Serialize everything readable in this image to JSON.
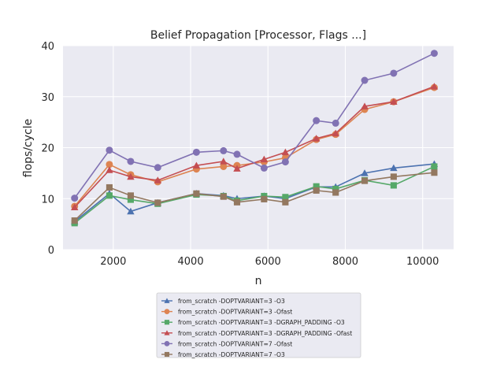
{
  "chart_data": {
    "type": "line",
    "title": "Belief Propagation [Processor, Flags ...]",
    "xlabel": "n",
    "ylabel": "flops/cycle",
    "xlim": [
      700,
      10800
    ],
    "ylim": [
      0,
      40
    ],
    "xticks": [
      2000,
      4000,
      6000,
      8000,
      10000
    ],
    "xtick_labels": [
      "2000",
      "4000",
      "6000",
      "8000",
      "10000"
    ],
    "yticks": [
      0,
      10,
      20,
      30,
      40
    ],
    "ytick_labels": [
      "0",
      "10",
      "20",
      "30",
      "40"
    ],
    "grid": true,
    "legend_position": "below plot",
    "series": [
      {
        "name": "from_scratch -DOPTVARIANT=3 -O3",
        "color": "#4c72b0",
        "marker": "triangle",
        "x": [
          1000,
          1900,
          2450,
          3150,
          4150,
          4850,
          5200,
          5900,
          6450,
          7250,
          7750,
          8500,
          9250,
          10300
        ],
        "y": [
          5.5,
          11.0,
          7.5,
          9.2,
          11.0,
          10.6,
          10.0,
          10.5,
          10.0,
          12.3,
          12.3,
          15.0,
          16.0,
          16.8
        ]
      },
      {
        "name": "from_scratch -DOPTVARIANT=3 -Ofast",
        "color": "#dd8452",
        "marker": "circle",
        "x": [
          1000,
          1900,
          2450,
          3150,
          4150,
          4850,
          5200,
          5900,
          6450,
          7250,
          7750,
          8500,
          9250,
          10300
        ],
        "y": [
          8.5,
          16.7,
          14.7,
          13.3,
          15.8,
          16.3,
          16.5,
          17.2,
          18.0,
          21.6,
          22.6,
          27.5,
          29.0,
          31.8
        ]
      },
      {
        "name": "from_scratch -DOPTVARIANT=3 -DGRAPH_PADDING -O3",
        "color": "#55a868",
        "marker": "square",
        "x": [
          1000,
          1900,
          2450,
          3150,
          4150,
          4850,
          5200,
          5900,
          6450,
          7250,
          7750,
          8500,
          9250,
          10300
        ],
        "y": [
          5.2,
          10.6,
          9.8,
          9.0,
          10.8,
          10.5,
          9.6,
          10.5,
          10.3,
          12.4,
          11.9,
          13.6,
          12.6,
          16.3
        ]
      },
      {
        "name": "from_scratch -DOPTVARIANT=3 -DGRAPH_PADDING -Ofast",
        "color": "#c44e52",
        "marker": "triangle",
        "x": [
          1000,
          1900,
          2450,
          3150,
          4150,
          4850,
          5200,
          5900,
          6450,
          7250,
          7750,
          8500,
          9250,
          10300
        ],
        "y": [
          8.3,
          15.6,
          14.3,
          13.6,
          16.5,
          17.3,
          15.9,
          17.7,
          19.1,
          21.8,
          22.8,
          28.1,
          29.0,
          32.0
        ]
      },
      {
        "name": "from_scratch -DOPTVARIANT=7 -Ofast",
        "color": "#8172b3",
        "marker": "circle",
        "x": [
          1000,
          1900,
          2450,
          3150,
          4150,
          4850,
          5200,
          5900,
          6450,
          7250,
          7750,
          8500,
          9250,
          10300
        ],
        "y": [
          10.1,
          19.5,
          17.3,
          16.1,
          19.1,
          19.4,
          18.7,
          16.0,
          17.2,
          25.3,
          24.8,
          33.2,
          34.6,
          38.5
        ]
      },
      {
        "name": "from_scratch -DOPTVARIANT=7 -O3",
        "color": "#937860",
        "marker": "square",
        "x": [
          1000,
          1900,
          2450,
          3150,
          4150,
          4850,
          5200,
          5900,
          6450,
          7250,
          7750,
          8500,
          9250,
          10300
        ],
        "y": [
          5.7,
          12.2,
          10.6,
          9.2,
          11.0,
          10.4,
          9.3,
          9.9,
          9.3,
          11.6,
          11.2,
          13.5,
          14.3,
          15.1
        ]
      }
    ]
  }
}
